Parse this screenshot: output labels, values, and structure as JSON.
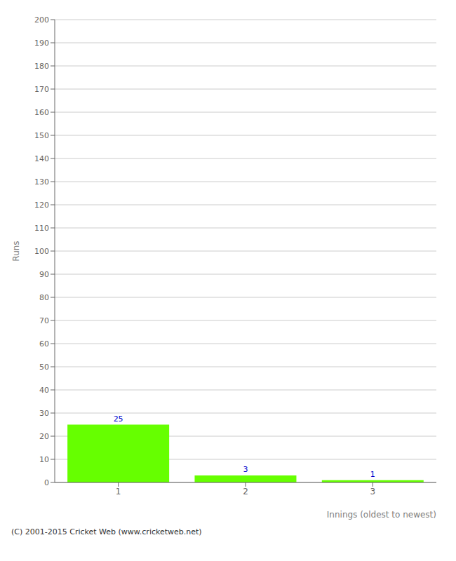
{
  "chart_data": {
    "type": "bar",
    "categories": [
      "1",
      "2",
      "3"
    ],
    "values": [
      25,
      3,
      1
    ],
    "color": "#66ff00",
    "xlabel": "Innings (oldest to newest)",
    "ylabel": "Runs",
    "ylim": [
      0,
      200
    ],
    "yticks": [
      0,
      10,
      20,
      30,
      40,
      50,
      60,
      70,
      80,
      90,
      100,
      110,
      120,
      130,
      140,
      150,
      160,
      170,
      180,
      190,
      200
    ],
    "grid": true,
    "data_labels": true,
    "annotations": [
      "(C) 2001-2015 Cricket Web (www.cricketweb.net)"
    ]
  }
}
